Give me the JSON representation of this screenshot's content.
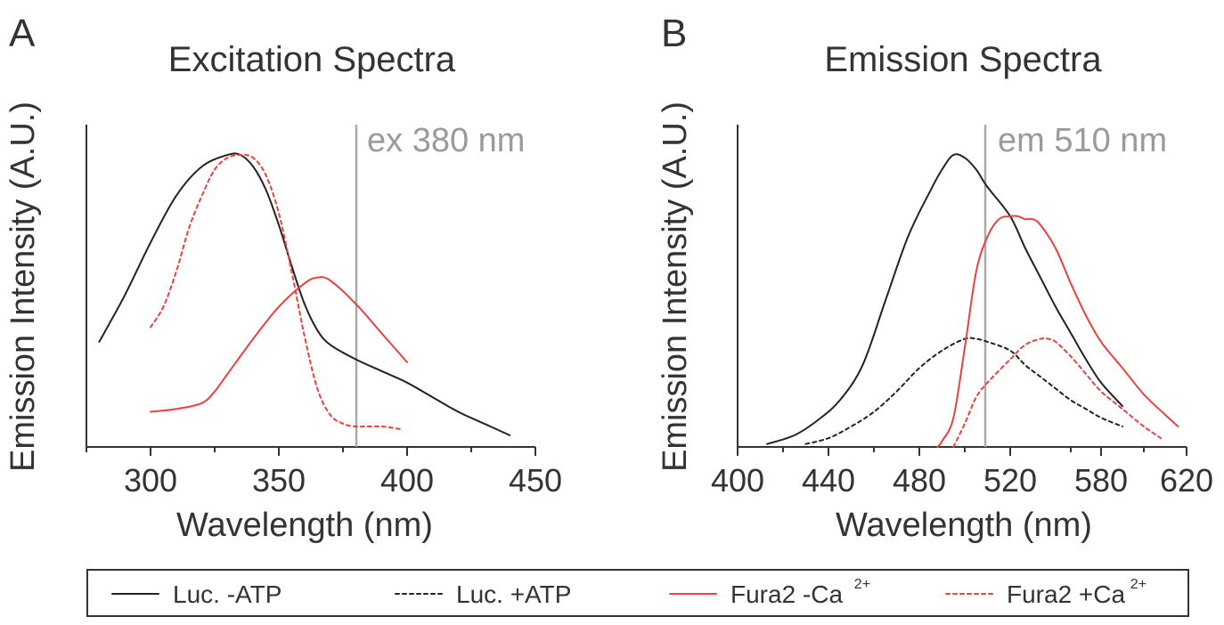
{
  "colors": {
    "black": "#222222",
    "red": "#e8413e",
    "refline": "#aaaaaa"
  },
  "legend": {
    "items": [
      {
        "label": "Luc. -ATP",
        "sup": "",
        "color": "#222222",
        "dash": "solid"
      },
      {
        "label": "Luc. +ATP",
        "sup": "",
        "color": "#222222",
        "dash": "dotted"
      },
      {
        "label": "Fura2 -Ca",
        "sup": "2+",
        "color": "#e8413e",
        "dash": "solid"
      },
      {
        "label": "Fura2 +Ca",
        "sup": "2+",
        "color": "#e8413e",
        "dash": "dotted"
      }
    ]
  },
  "chart_data": [
    {
      "panel": "A",
      "type": "line",
      "title": "Excitation Spectra",
      "xlabel": "Wavelength (nm)",
      "ylabel": "Emission Intensity (A.U.)",
      "xlim": [
        275,
        450
      ],
      "ylim": [
        0,
        1
      ],
      "xticks": [
        300,
        350,
        400,
        450
      ],
      "xticks_minor": [
        275,
        325,
        375,
        425
      ],
      "yticks": [],
      "grid": false,
      "annotation": {
        "text": "ex 380 nm",
        "x": 380
      },
      "series": [
        {
          "name": "Luc. -ATP",
          "color": "#222222",
          "dash": "solid",
          "x": [
            280,
            290,
            300,
            310,
            320,
            330,
            335,
            340,
            345,
            350,
            355,
            360,
            365,
            370,
            380,
            390,
            400,
            410,
            420,
            430,
            440
          ],
          "y": [
            0.36,
            0.52,
            0.7,
            0.86,
            0.96,
            1.0,
            1.0,
            0.96,
            0.88,
            0.76,
            0.62,
            0.49,
            0.4,
            0.35,
            0.3,
            0.26,
            0.22,
            0.17,
            0.12,
            0.08,
            0.04
          ]
        },
        {
          "name": "Fura2 -Ca2+",
          "color": "#e8413e",
          "dash": "solid",
          "x": [
            300,
            310,
            320,
            325,
            330,
            340,
            350,
            360,
            365,
            370,
            380,
            390,
            400
          ],
          "y": [
            0.12,
            0.13,
            0.15,
            0.19,
            0.25,
            0.37,
            0.48,
            0.56,
            0.58,
            0.57,
            0.49,
            0.39,
            0.29
          ]
        },
        {
          "name": "Fura2 +Ca2+",
          "color": "#e8413e",
          "dash": "dotted",
          "x": [
            300,
            305,
            310,
            315,
            320,
            325,
            330,
            335,
            340,
            345,
            350,
            355,
            360,
            365,
            370,
            375,
            380,
            390,
            398
          ],
          "y": [
            0.41,
            0.48,
            0.6,
            0.75,
            0.86,
            0.95,
            0.99,
            1.0,
            0.99,
            0.93,
            0.8,
            0.6,
            0.38,
            0.2,
            0.11,
            0.08,
            0.07,
            0.07,
            0.06
          ]
        }
      ]
    },
    {
      "panel": "B",
      "type": "line",
      "title": "Emission Spectra",
      "xlabel": "Wavelength (nm)",
      "ylabel": "Emission Intensity (A.U.)",
      "xlim": [
        400,
        620
      ],
      "ylim": [
        0,
        1
      ],
      "xticks": [
        400,
        440,
        480,
        520,
        580,
        620
      ],
      "xticks_minor": [
        420,
        460,
        500,
        560,
        600
      ],
      "yticks": [],
      "grid": false,
      "annotation": {
        "text": "em 510 nm",
        "x": 510
      },
      "series": [
        {
          "name": "Luc. -ATP",
          "color": "#222222",
          "dash": "solid",
          "x": [
            413,
            425,
            435,
            445,
            455,
            465,
            475,
            485,
            490,
            495,
            500,
            505,
            510,
            520,
            530,
            540,
            550,
            560,
            570,
            580,
            590
          ],
          "y": [
            0.01,
            0.04,
            0.09,
            0.16,
            0.28,
            0.5,
            0.72,
            0.88,
            0.95,
            1.0,
            0.99,
            0.95,
            0.89,
            0.79,
            0.68,
            0.58,
            0.48,
            0.39,
            0.3,
            0.22,
            0.14
          ]
        },
        {
          "name": "Luc. +ATP",
          "color": "#222222",
          "dash": "dotted",
          "x": [
            430,
            440,
            450,
            460,
            470,
            480,
            490,
            500,
            505,
            510,
            520,
            530,
            540,
            550,
            560,
            570,
            580,
            590
          ],
          "y": [
            0.01,
            0.03,
            0.07,
            0.12,
            0.19,
            0.27,
            0.33,
            0.37,
            0.37,
            0.36,
            0.33,
            0.28,
            0.24,
            0.2,
            0.16,
            0.13,
            0.1,
            0.07
          ]
        },
        {
          "name": "Fura2 -Ca2+",
          "color": "#e8413e",
          "dash": "solid",
          "x": [
            488,
            490,
            495,
            500,
            505,
            510,
            515,
            520,
            525,
            530,
            535,
            540,
            550,
            560,
            570,
            580,
            590,
            600,
            610,
            616
          ],
          "y": [
            0.0,
            0.02,
            0.1,
            0.34,
            0.6,
            0.72,
            0.78,
            0.79,
            0.79,
            0.78,
            0.78,
            0.76,
            0.68,
            0.56,
            0.45,
            0.36,
            0.27,
            0.18,
            0.11,
            0.07
          ]
        },
        {
          "name": "Fura2 +Ca2+",
          "color": "#e8413e",
          "dash": "dotted",
          "x": [
            495,
            500,
            505,
            510,
            520,
            530,
            540,
            545,
            550,
            560,
            570,
            580,
            590,
            600,
            608
          ],
          "y": [
            0.0,
            0.08,
            0.17,
            0.22,
            0.3,
            0.35,
            0.37,
            0.37,
            0.36,
            0.31,
            0.25,
            0.19,
            0.13,
            0.07,
            0.03
          ]
        }
      ]
    }
  ]
}
